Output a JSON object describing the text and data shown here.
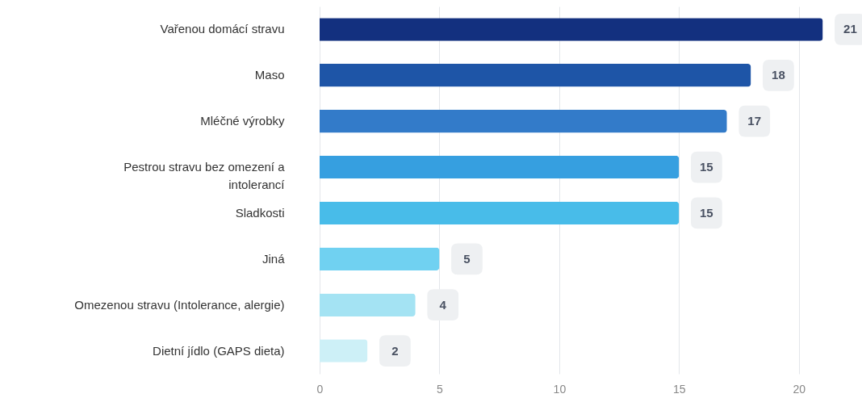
{
  "chart_data": {
    "type": "bar",
    "orientation": "horizontal",
    "categories": [
      "Vařenou domácí stravu",
      "Maso",
      "Mléčné výrobky",
      "Pestrou stravu bez omezení a intolerancí",
      "Sladkosti",
      "Jiná",
      "Omezenou stravu (Intolerance, alergie)",
      "Dietní jídlo (GAPS dieta)"
    ],
    "values": [
      21,
      18,
      17,
      15,
      15,
      5,
      4,
      2
    ],
    "colors": [
      "#13307f",
      "#1e55a7",
      "#337bc9",
      "#369fe0",
      "#48bce9",
      "#70d1f1",
      "#a4e3f3",
      "#cdf0f7"
    ],
    "xlim": [
      0,
      22.5
    ],
    "xticks": [
      0,
      5,
      10,
      15,
      20
    ],
    "grid": "x",
    "data_labels": true
  }
}
